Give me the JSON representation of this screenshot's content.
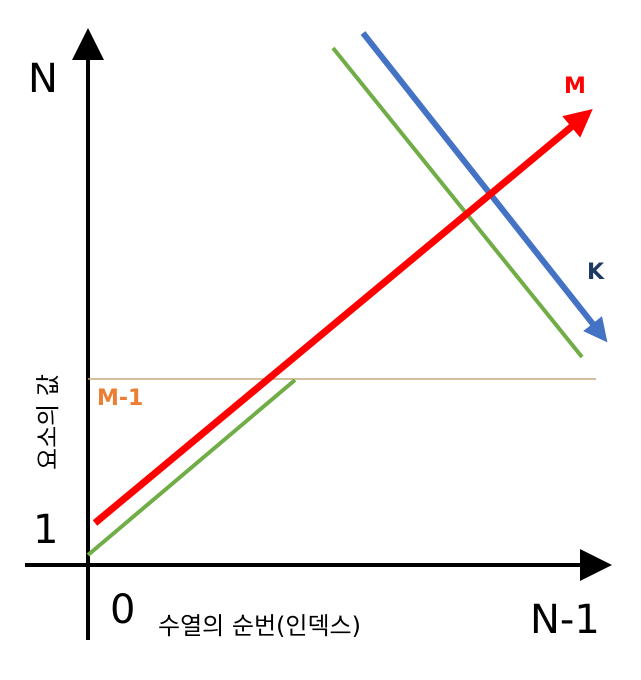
{
  "diagram": {
    "y_top_label": "N",
    "y_one_label": "1",
    "y_axis_title": "요소의 값",
    "x_origin_label": "0",
    "x_axis_title": "수열의 순번(인덱스)",
    "x_end_label": "N-1",
    "m_label": "M",
    "k_label": "K",
    "m_minus_1_label": "M-1"
  },
  "colors": {
    "axis": "#000000",
    "m_line": "#ff0000",
    "k_line": "#4472c4",
    "green_line": "#70ad47",
    "threshold_line": "#c5a97a",
    "m_minus_1_label": "#ed7d31",
    "k_label": "#1f3864"
  }
}
